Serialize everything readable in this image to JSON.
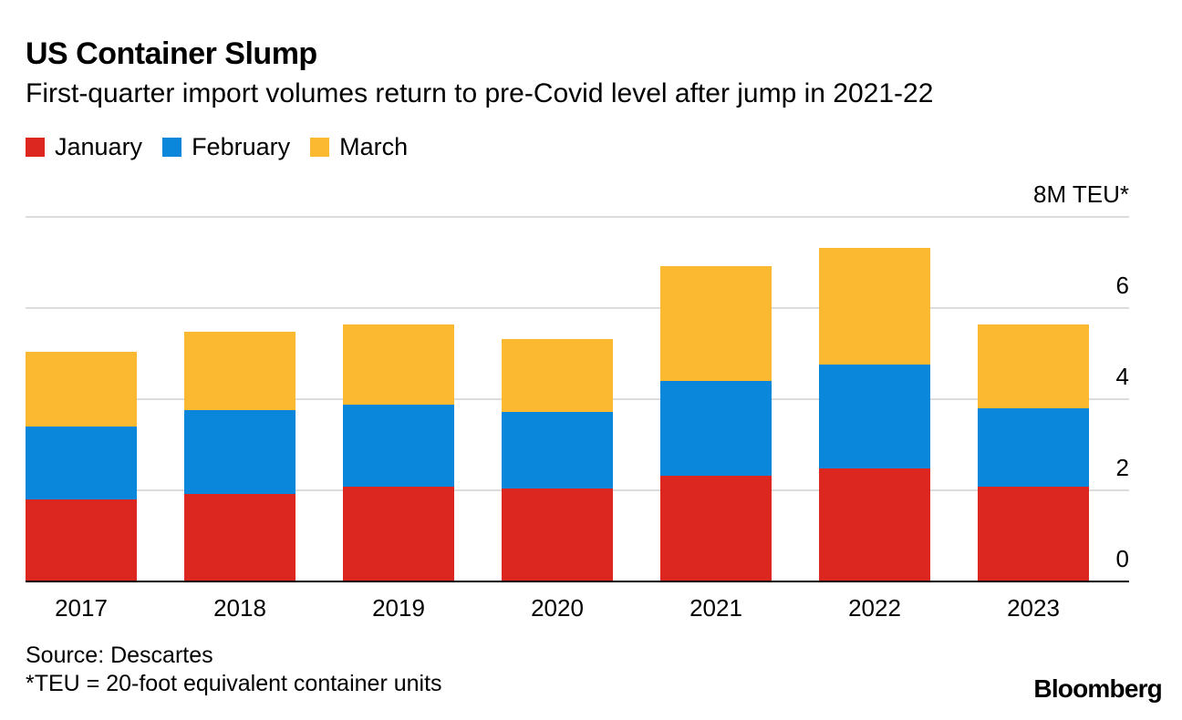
{
  "header": {
    "title": "US Container Slump",
    "subtitle": "First-quarter import volumes return to pre-Covid level after jump in 2021-22"
  },
  "footer": {
    "source": "Source: Descartes",
    "note": "*TEU = 20-foot equivalent container units",
    "brand": "Bloomberg"
  },
  "chart_data": {
    "type": "bar",
    "stacked": true,
    "title": "US Container Slump",
    "subtitle": "First-quarter import volumes return to pre-Covid level after jump in 2021-22",
    "categories": [
      "2017",
      "2018",
      "2019",
      "2020",
      "2021",
      "2022",
      "2023"
    ],
    "series": [
      {
        "name": "January",
        "color": "#dc2620",
        "values": [
          1.8,
          1.92,
          2.08,
          2.04,
          2.32,
          2.48,
          2.08
        ]
      },
      {
        "name": "February",
        "color": "#0a87da",
        "values": [
          1.6,
          1.84,
          1.8,
          1.68,
          2.08,
          2.28,
          1.72
        ]
      },
      {
        "name": "March",
        "color": "#fbb931",
        "values": [
          1.64,
          1.72,
          1.76,
          1.6,
          2.52,
          2.56,
          1.84
        ]
      }
    ],
    "y_axis": {
      "min": 0,
      "max": 8,
      "ticks": [
        0,
        2,
        4,
        6,
        8
      ],
      "tick_labels": [
        "0",
        "2",
        "4",
        "6",
        "8M TEU*"
      ],
      "position": "right"
    },
    "grid": true,
    "legend": "top-left"
  }
}
